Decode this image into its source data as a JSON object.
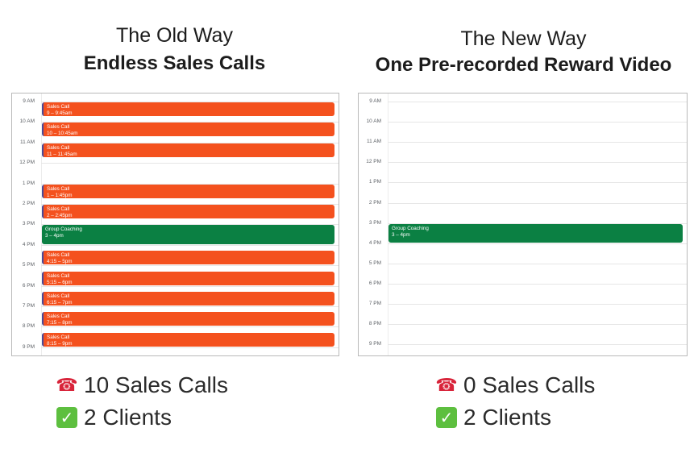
{
  "old_way": {
    "heading": "The Old Way",
    "subheading": "Endless Sales Calls",
    "hours": [
      "9 AM",
      "10 AM",
      "11 AM",
      "12 PM",
      "1 PM",
      "2 PM",
      "3 PM",
      "4 PM",
      "5 PM",
      "6 PM",
      "7 PM",
      "8 PM",
      "9 PM"
    ],
    "events": [
      {
        "type": "sales",
        "title": "Sales Call",
        "time": "9 – 9:45am"
      },
      {
        "type": "sales",
        "title": "Sales Call",
        "time": "10 – 10:45am"
      },
      {
        "type": "sales",
        "title": "Sales Call",
        "time": "11 – 11:45am"
      },
      {
        "type": "sales",
        "title": "Sales Call",
        "time": "1 – 1:45pm"
      },
      {
        "type": "sales",
        "title": "Sales Call",
        "time": "2 – 2:45pm"
      },
      {
        "type": "coaching",
        "title": "Group Coaching",
        "time": "3 – 4pm"
      },
      {
        "type": "sales",
        "title": "Sales Call",
        "time": "4:15 – 5pm"
      },
      {
        "type": "sales",
        "title": "Sales Call",
        "time": "5:15 – 6pm"
      },
      {
        "type": "sales",
        "title": "Sales Call",
        "time": "6:15 – 7pm"
      },
      {
        "type": "sales",
        "title": "Sales Call",
        "time": "7:15 – 8pm"
      },
      {
        "type": "sales",
        "title": "Sales Call",
        "time": "8:15 – 9pm"
      }
    ],
    "stats": {
      "calls": "10 Sales Calls",
      "clients": "2 Clients"
    }
  },
  "new_way": {
    "heading": "The New Way",
    "subheading": "One Pre-recorded Reward Video",
    "hours": [
      "9 AM",
      "10 AM",
      "11 AM",
      "12 PM",
      "1 PM",
      "2 PM",
      "3 PM",
      "4 PM",
      "5 PM",
      "6 PM",
      "7 PM",
      "8 PM",
      "9 PM"
    ],
    "events": [
      {
        "type": "coaching",
        "title": "Group Coaching",
        "time": "3 – 4pm"
      }
    ],
    "stats": {
      "calls": "0 Sales Calls",
      "clients": "2 Clients"
    }
  },
  "icons": {
    "calls": "telephone-icon",
    "clients": "check-mark-icon"
  },
  "colors": {
    "sales_call": "#f4511e",
    "group_coaching": "#0b8043",
    "check": "#5dbf3f",
    "phone": "#d8243a"
  }
}
